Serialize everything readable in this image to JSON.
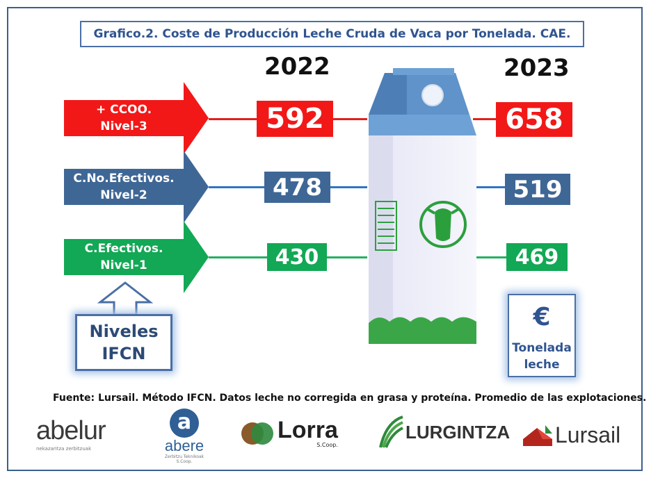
{
  "title": "Grafico.2. Coste de Producción Leche Cruda de Vaca por Tonelada. CAE.",
  "years": {
    "left": "2022",
    "right": "2023"
  },
  "rows": [
    {
      "label_1": "+ CCOO.",
      "label_2": "Nivel-3",
      "color": "#f21818",
      "line_color": "#e02020",
      "v2022": "592",
      "v2023": "658"
    },
    {
      "label_1": "C.No.Efectivos.",
      "label_2": "Nivel-2",
      "color": "#3f6796",
      "line_color": "#2f75c0",
      "v2022": "478",
      "v2023": "519"
    },
    {
      "label_1": "C.Efectivos.",
      "label_2": "Nivel-1",
      "color": "#12a855",
      "line_color": "#22b060",
      "v2022": "430",
      "v2023": "469"
    }
  ],
  "niveles": {
    "line1": "Niveles",
    "line2": "IFCN"
  },
  "unit": {
    "symbol": "€",
    "line1": "Tonelada",
    "line2": "leche"
  },
  "source": "Fuente: Lursail. Método IFCN. Datos leche no corregida en grasa y proteína. Promedio de las explotaciones.",
  "logos": {
    "abelur": "abelur",
    "abelur_sub": "nekazaritza zerbitzuak",
    "abere_letter": "a",
    "abere": "abere",
    "abere_sub": "Zerbitzu Teknikoak S.Coop.",
    "lorra": "Lorra",
    "lorra_sub": "S.Coop.",
    "lurgintza": "LURGINTZA",
    "lursail": "Lursail"
  }
}
